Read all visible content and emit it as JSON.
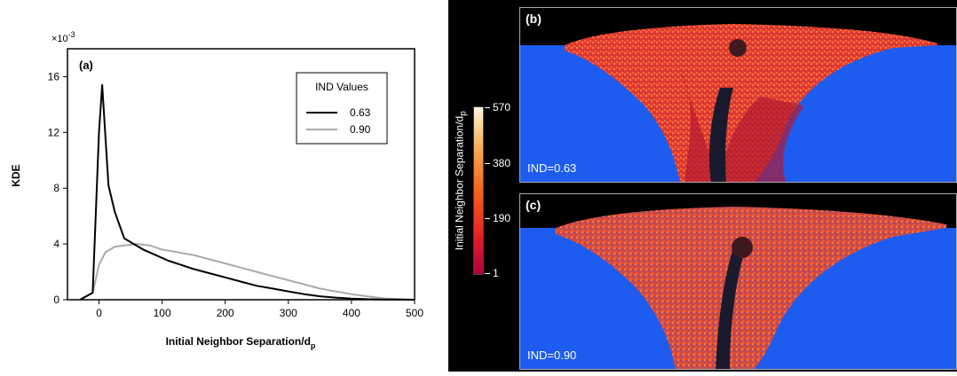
{
  "chart_data": [
    {
      "type": "line",
      "panel_label": "(a)",
      "xlabel": "Initial Neighbor Separation/d",
      "xlabel_sub": "p",
      "ylabel": "KDE",
      "y_multiplier": "×10",
      "y_multiplier_exp": "-3",
      "xlim": [
        -50,
        500
      ],
      "ylim": [
        0,
        18
      ],
      "xticks": [
        0,
        100,
        200,
        300,
        400,
        500
      ],
      "yticks": [
        0,
        4,
        8,
        12,
        16
      ],
      "legend": {
        "title": "IND Values",
        "position": "top-right"
      },
      "series": [
        {
          "name": "0.63",
          "color": "#000000",
          "x": [
            -30,
            -10,
            0,
            5,
            15,
            25,
            40,
            55,
            70,
            90,
            110,
            130,
            150,
            175,
            200,
            225,
            250,
            275,
            300,
            325,
            350,
            375,
            400,
            425,
            450,
            475,
            500
          ],
          "y": [
            0,
            0.5,
            12.0,
            15.4,
            8.2,
            6.3,
            4.4,
            4.0,
            3.6,
            3.2,
            2.8,
            2.5,
            2.2,
            1.9,
            1.6,
            1.3,
            1.0,
            0.8,
            0.6,
            0.4,
            0.25,
            0.15,
            0.08,
            0.04,
            0.02,
            0.01,
            0
          ]
        },
        {
          "name": "0.90",
          "color": "#aaaaaa",
          "x": [
            -30,
            -10,
            0,
            10,
            25,
            40,
            60,
            80,
            100,
            125,
            150,
            175,
            200,
            225,
            250,
            275,
            300,
            325,
            350,
            375,
            400,
            425,
            450,
            475,
            500
          ],
          "y": [
            0,
            0.5,
            2.5,
            3.4,
            3.8,
            3.9,
            4.0,
            3.9,
            3.6,
            3.4,
            3.2,
            2.9,
            2.6,
            2.3,
            2.0,
            1.7,
            1.4,
            1.1,
            0.8,
            0.6,
            0.4,
            0.25,
            0.1,
            0.04,
            0
          ]
        }
      ]
    },
    {
      "type": "heatmap",
      "panel_label": "(b)",
      "annotation": "IND=0.63",
      "colorbar": {
        "title": "Initial Neighbor Separation/d",
        "title_sub": "p",
        "ticks": [
          "570",
          "380",
          "190",
          "1"
        ]
      }
    },
    {
      "type": "heatmap",
      "panel_label": "(c)",
      "annotation": "IND=0.90"
    }
  ],
  "colors": {
    "background_blue": "#1e5cf0",
    "crater_red": "#e03828",
    "jet_dark": "#1a1a2e"
  }
}
